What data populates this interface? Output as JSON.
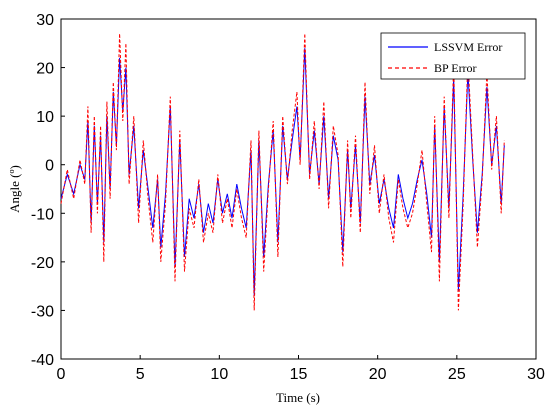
{
  "chart_data": {
    "type": "line",
    "xlabel": "Time (s)",
    "ylabel": "Angle (º)",
    "xlim": [
      0,
      30
    ],
    "ylim": [
      -40,
      30
    ],
    "x_ticks": [
      "0",
      "5",
      "10",
      "15",
      "20",
      "25",
      "30"
    ],
    "y_ticks": [
      "30",
      "20",
      "10",
      "0",
      "-10",
      "-20",
      "-30",
      "-40"
    ],
    "grid": false,
    "legend_position": "top-right",
    "series": [
      {
        "name": "LSSVM Error",
        "color": "#0000ff",
        "style": "solid",
        "x": [
          0,
          0.4,
          0.8,
          1.2,
          1.5,
          1.7,
          1.9,
          2.1,
          2.3,
          2.5,
          2.7,
          2.9,
          3.1,
          3.3,
          3.5,
          3.7,
          3.9,
          4.1,
          4.3,
          4.6,
          4.9,
          5.2,
          5.5,
          5.8,
          6.1,
          6.3,
          6.6,
          6.9,
          7.2,
          7.5,
          7.8,
          8.1,
          8.4,
          8.7,
          9.0,
          9.3,
          9.6,
          9.9,
          10.2,
          10.5,
          10.8,
          11.1,
          11.4,
          11.7,
          12.0,
          12.2,
          12.5,
          12.8,
          13.1,
          13.4,
          13.7,
          14.0,
          14.3,
          14.6,
          14.9,
          15.1,
          15.4,
          15.7,
          16.0,
          16.3,
          16.6,
          16.9,
          17.2,
          17.5,
          17.8,
          18.1,
          18.3,
          18.6,
          18.9,
          19.2,
          19.5,
          19.8,
          20.1,
          20.4,
          20.7,
          21.0,
          21.3,
          21.6,
          21.9,
          22.2,
          22.5,
          22.8,
          23.1,
          23.4,
          23.6,
          23.9,
          24.2,
          24.5,
          24.8,
          25.1,
          25.4,
          25.7,
          26.0,
          26.3,
          26.6,
          26.9,
          27.2,
          27.5,
          27.8,
          28.0
        ],
        "y": [
          -7,
          -2,
          -6,
          0,
          -3,
          9,
          -12,
          8,
          -8,
          6,
          -16,
          10,
          -5,
          15,
          4,
          22,
          11,
          20,
          -2,
          8,
          -9,
          3,
          -5,
          -13,
          -3,
          -17,
          -6,
          12,
          -21,
          5,
          -19,
          -7,
          -11,
          -4,
          -14,
          -8,
          -12,
          -3,
          -10,
          -6,
          -11,
          -4,
          -9,
          -13,
          3,
          -27,
          5,
          -19,
          -4,
          7,
          -16,
          8,
          -3,
          5,
          12,
          1,
          24,
          -2,
          7,
          -4,
          10,
          -7,
          6,
          1,
          -18,
          3,
          -9,
          4,
          -12,
          14,
          -4,
          2,
          -8,
          -3,
          -9,
          -13,
          -2,
          -7,
          -11,
          -8,
          -3,
          1,
          -6,
          -15,
          8,
          -20,
          12,
          -9,
          18,
          -26,
          -6,
          19,
          1,
          -14,
          -2,
          16,
          0,
          8,
          -8,
          4
        ]
      },
      {
        "name": "BP Error",
        "color": "#ff0000",
        "style": "dashed",
        "x": [
          0,
          0.4,
          0.8,
          1.2,
          1.5,
          1.7,
          1.9,
          2.1,
          2.3,
          2.5,
          2.7,
          2.9,
          3.1,
          3.3,
          3.5,
          3.7,
          3.9,
          4.1,
          4.3,
          4.6,
          4.9,
          5.2,
          5.5,
          5.8,
          6.1,
          6.3,
          6.6,
          6.9,
          7.2,
          7.5,
          7.8,
          8.1,
          8.4,
          8.7,
          9.0,
          9.3,
          9.6,
          9.9,
          10.2,
          10.5,
          10.8,
          11.1,
          11.4,
          11.7,
          12.0,
          12.2,
          12.5,
          12.8,
          13.1,
          13.4,
          13.7,
          14.0,
          14.3,
          14.6,
          14.9,
          15.1,
          15.4,
          15.7,
          16.0,
          16.3,
          16.6,
          16.9,
          17.2,
          17.5,
          17.8,
          18.1,
          18.3,
          18.6,
          18.9,
          19.2,
          19.5,
          19.8,
          20.1,
          20.4,
          20.7,
          21.0,
          21.3,
          21.6,
          21.9,
          22.2,
          22.5,
          22.8,
          23.1,
          23.4,
          23.6,
          23.9,
          24.2,
          24.5,
          24.8,
          25.1,
          25.4,
          25.7,
          26.0,
          26.3,
          26.6,
          26.9,
          27.2,
          27.5,
          27.8,
          28.0
        ],
        "y": [
          -8,
          -1,
          -7,
          1,
          -4,
          12,
          -14,
          10,
          -10,
          8,
          -20,
          13,
          -7,
          17,
          3,
          27,
          9,
          25,
          -4,
          10,
          -12,
          5,
          -7,
          -16,
          -2,
          -20,
          -8,
          14,
          -24,
          7,
          -22,
          -9,
          -13,
          -3,
          -16,
          -10,
          -14,
          -2,
          -12,
          -7,
          -13,
          -5,
          -11,
          -15,
          5,
          -30,
          7,
          -22,
          -5,
          9,
          -19,
          10,
          -4,
          7,
          15,
          0,
          27,
          -3,
          9,
          -5,
          13,
          -9,
          8,
          2,
          -21,
          5,
          -11,
          6,
          -14,
          17,
          -6,
          4,
          -10,
          -2,
          -11,
          -16,
          -3,
          -9,
          -13,
          -10,
          -4,
          3,
          -8,
          -18,
          10,
          -24,
          14,
          -11,
          21,
          -30,
          -8,
          22,
          2,
          -17,
          -3,
          19,
          -1,
          10,
          -10,
          5
        ]
      }
    ]
  }
}
